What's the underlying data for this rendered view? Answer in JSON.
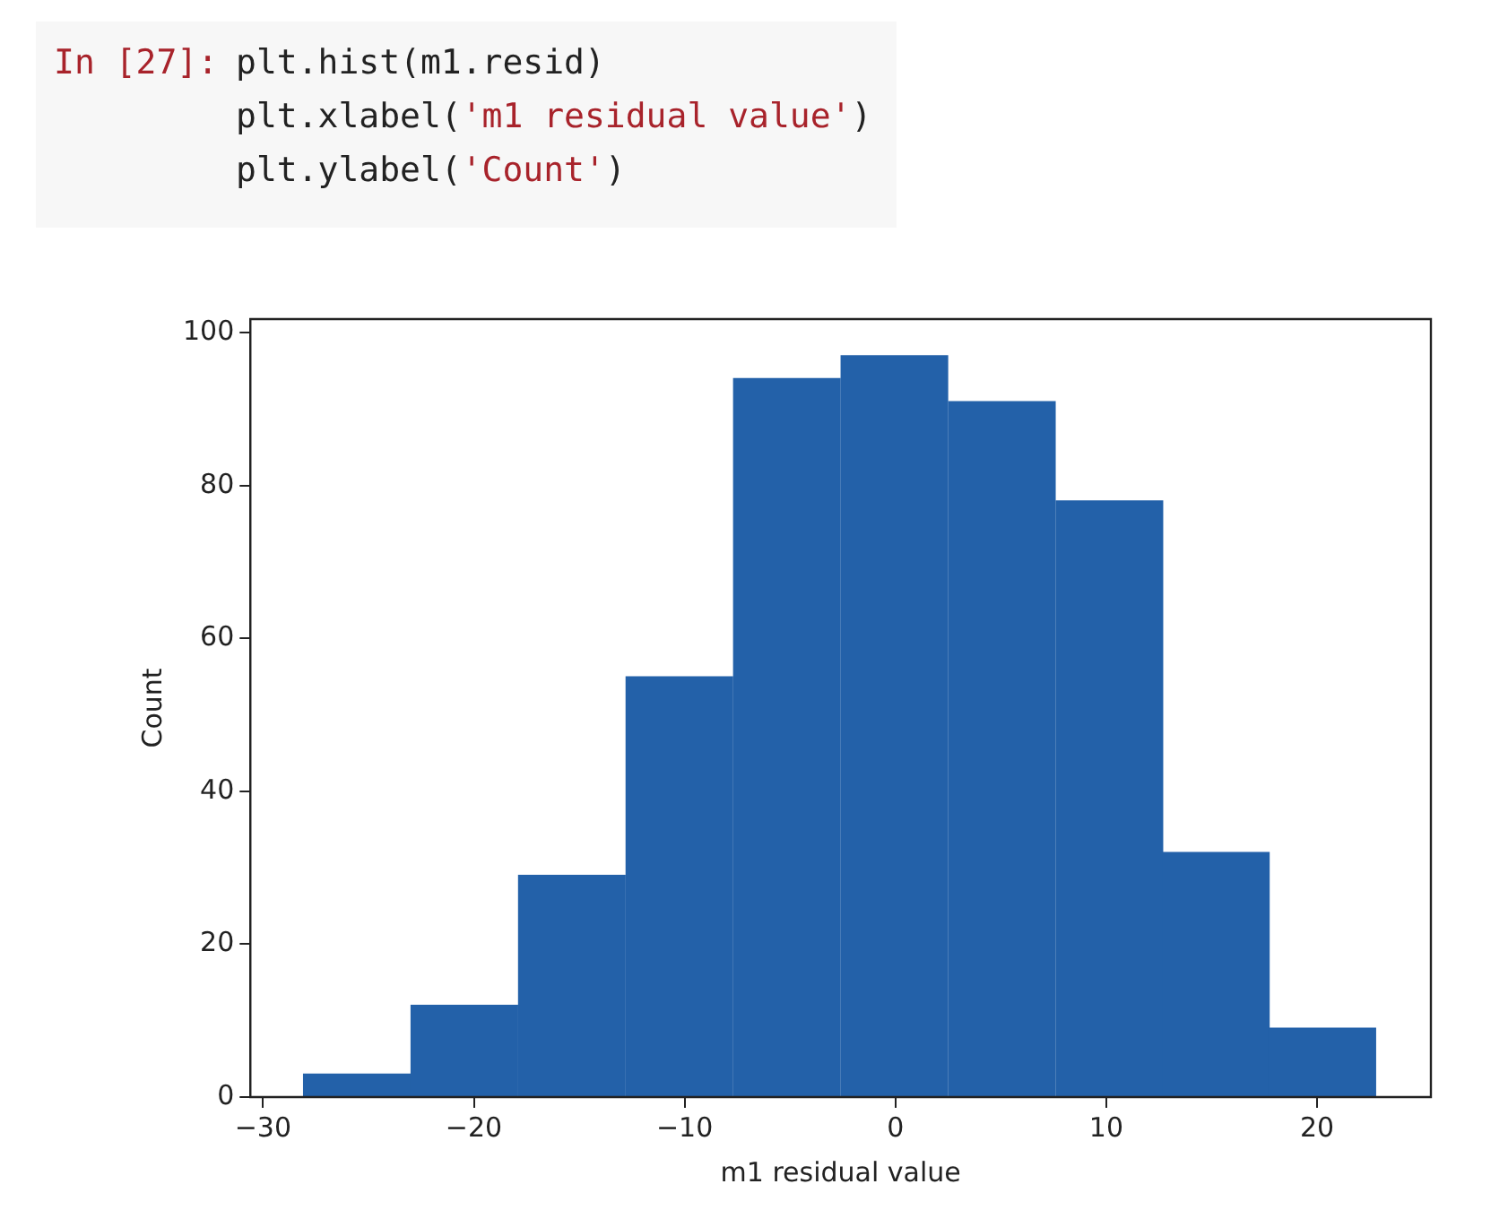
{
  "chart_data": {
    "type": "histogram",
    "xlabel": "m1 residual value",
    "ylabel": "Count",
    "bins": [
      -28.1,
      -23.0,
      -17.9,
      -12.8,
      -7.7,
      -2.6,
      2.5,
      7.6,
      12.7,
      17.7,
      22.8
    ],
    "values": [
      3,
      12,
      29,
      55,
      94,
      97,
      91,
      78,
      32,
      9
    ],
    "color": "#2361a9",
    "xlim": [
      -30.6,
      25.4
    ],
    "xticks": [
      {
        "value": -30,
        "label": "−30"
      },
      {
        "value": -20,
        "label": "−20"
      },
      {
        "value": -10,
        "label": "−10"
      },
      0,
      10,
      20
    ],
    "ylim": [
      0,
      101.8
    ],
    "yticks": [
      0,
      20,
      40,
      60,
      80,
      100
    ],
    "annotations": [
      "In [27]:",
      "plt.hist(m1.resid)",
      "plt.xlabel('m1 residual value')",
      "plt.ylabel('Count')"
    ]
  }
}
